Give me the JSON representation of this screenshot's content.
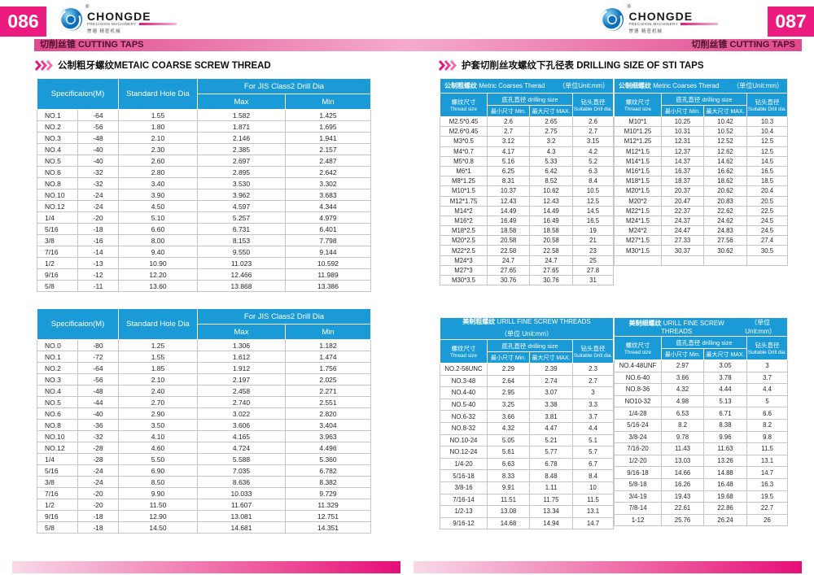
{
  "colors": {
    "accent_pink": "#e4137e",
    "page_number_bg": "#ec1b80",
    "banner_dark": "#e0498e",
    "banner_light": "#f5abcc",
    "banner_text": "#4a1228",
    "table_header_blue": "#1b9ad8",
    "body_border_gray": "#c6c6c6",
    "footer_gradient_end": "#e60e78",
    "logo_globe_blue": "#0a6fbd"
  },
  "logo": {
    "registered": "®",
    "name": "CHONGDE",
    "subtitle": "PRECISION MACHINERY",
    "chinese": "崇德 精密机械"
  },
  "left_page": {
    "page_number": "086",
    "banner": "切削丝锥 CUTTING TAPS",
    "section_title": "公制粗牙螺纹METAIC COARSE SCREW THREAD",
    "headers": {
      "spec": "Specificaion(M)",
      "std": "Standard Hole Dia",
      "jis": "For JIS Class2 Drill Dia",
      "max": "Max",
      "min": "Min"
    },
    "table1_rows": [
      [
        "NO.1",
        "-64",
        "1.55",
        "1.582",
        "1.425"
      ],
      [
        "NO.2",
        "-56",
        "1.80",
        "1.871",
        "1.695"
      ],
      [
        "NO.3",
        "-48",
        "2.10",
        "2.146",
        "1.941"
      ],
      [
        "NO.4",
        "-40",
        "2.30",
        "2.385",
        "2.157"
      ],
      [
        "NO.5",
        "-40",
        "2.60",
        "2.697",
        "2.487"
      ],
      [
        "NO.6",
        "-32",
        "2.80",
        "2.895",
        "2.642"
      ],
      [
        "NO.8",
        "-32",
        "3.40",
        "3.530",
        "3.302"
      ],
      [
        "NO.10",
        "-24",
        "3.90",
        "3.962",
        "3.683"
      ],
      [
        "NO.12",
        "-24",
        "4.50",
        "4.597",
        "4.344"
      ],
      [
        "1/4",
        "-20",
        "5.10",
        "5.257",
        "4.979"
      ],
      [
        "5/16",
        "-18",
        "6.60",
        "6.731",
        "6.401"
      ],
      [
        "3/8",
        "-16",
        "8.00",
        "8.153",
        "7.798"
      ],
      [
        "7/16",
        "-14",
        "9.40",
        "9.550",
        "9.144"
      ],
      [
        "1/2",
        "-13",
        "10.90",
        "11.023",
        "10.592"
      ],
      [
        "9/16",
        "-12",
        "12.20",
        "12.466",
        "11.989"
      ],
      [
        "5/8",
        "-11",
        "13.60",
        "13.868",
        "13.386"
      ]
    ],
    "table2_rows": [
      [
        "NO.0",
        "-80",
        "1.25",
        "1.306",
        "1.182"
      ],
      [
        "NO.1",
        "-72",
        "1.55",
        "1.612",
        "1.474"
      ],
      [
        "NO.2",
        "-64",
        "1.85",
        "1.912",
        "1.756"
      ],
      [
        "NO.3",
        "-56",
        "2.10",
        "2.197",
        "2.025"
      ],
      [
        "NO.4",
        "-48",
        "2.40",
        "2.458",
        "2.271"
      ],
      [
        "NO.5",
        "-44",
        "2.70",
        "2.740",
        "2.551"
      ],
      [
        "NO.6",
        "-40",
        "2.90",
        "3.022",
        "2.820"
      ],
      [
        "NO.8",
        "-36",
        "3.50",
        "3.606",
        "3.404"
      ],
      [
        "NO.10",
        "-32",
        "4.10",
        "4.165",
        "3.963"
      ],
      [
        "NO.12",
        "-28",
        "4.60",
        "4.724",
        "4.496"
      ],
      [
        "1/4",
        "-28",
        "5.50",
        "5.588",
        "5.360"
      ],
      [
        "5/16",
        "-24",
        "6.90",
        "7.035",
        "6.782"
      ],
      [
        "3/8",
        "-24",
        "8.50",
        "8.636",
        "8.382"
      ],
      [
        "7/16",
        "-20",
        "9.90",
        "10.033",
        "9.729"
      ],
      [
        "1/2",
        "-20",
        "11.50",
        "11.607",
        "11.329"
      ],
      [
        "9/16",
        "-18",
        "12.90",
        "13.081",
        "12.751"
      ],
      [
        "5/8",
        "-18",
        "14.50",
        "14.681",
        "14.351"
      ]
    ]
  },
  "right_page": {
    "page_number": "087",
    "banner": "切削丝锥 CUTTING TAPS",
    "section_title": "护套切削丝攻螺纹下孔径表 DRILLING SIZE OF STI TAPS",
    "common_headers": {
      "thread_zh": "螺纹尺寸",
      "thread_en": "Thread size",
      "drilling": "底孔直径 drilling size",
      "min": "最小尺寸 Min.",
      "max": "最大尺寸 MAX.",
      "drill_zh": "钻头直径",
      "drill_en": "Suitable Drill dia."
    },
    "tables": [
      {
        "title_zh": "公制粗螺纹",
        "title_en": "Metric Coarses Therad",
        "unit": "（单位Unit:mm）",
        "rows": [
          [
            "M2.5*0.45",
            "2.6",
            "2.65",
            "2.6"
          ],
          [
            "M2.6*0.45",
            "2.7",
            "2.75",
            "2.7"
          ],
          [
            "M3*0.5",
            "3.12",
            "3.2",
            "3.15"
          ],
          [
            "M4*0.7",
            "4.17",
            "4.3",
            "4.2"
          ],
          [
            "M5*0.8",
            "5.16",
            "5.33",
            "5.2"
          ],
          [
            "M6*1",
            "6.25",
            "6.42",
            "6.3"
          ],
          [
            "M8*1.25",
            "8.31",
            "8.52",
            "8.4"
          ],
          [
            "M10*1.5",
            "10.37",
            "10.62",
            "10.5"
          ],
          [
            "M12*1.75",
            "12.43",
            "12.43",
            "12.5"
          ],
          [
            "M14*2",
            "14.49",
            "14.49",
            "14.5"
          ],
          [
            "M16*2",
            "16.49",
            "16.49",
            "16.5"
          ],
          [
            "M18*2.5",
            "18.58",
            "18.58",
            "19"
          ],
          [
            "M20*2.5",
            "20.58",
            "20.58",
            "21"
          ],
          [
            "M22*2.5",
            "22.58",
            "22.58",
            "23"
          ],
          [
            "M24*3",
            "24.7",
            "24.7",
            "25"
          ],
          [
            "M27*3",
            "27.65",
            "27.65",
            "27.8"
          ],
          [
            "M30*3.5",
            "30.76",
            "30.76",
            "31"
          ]
        ]
      },
      {
        "title_zh": "公制细螺纹",
        "title_en": "Metric Coarses Therad",
        "unit": "（单位Unit:mm）",
        "rows": [
          [
            "M10*1",
            "10.25",
            "10.42",
            "10.3"
          ],
          [
            "M10*1.25",
            "10.31",
            "10.52",
            "10.4"
          ],
          [
            "M12*1.25",
            "12.31",
            "12.52",
            "12.5"
          ],
          [
            "M12*1.5",
            "12.37",
            "12.62",
            "12.5"
          ],
          [
            "M14*1.5",
            "14.37",
            "14.62",
            "14.5"
          ],
          [
            "M16*1.5",
            "16.37",
            "16.62",
            "16.5"
          ],
          [
            "M18*1.5",
            "18.37",
            "18.62",
            "18.5"
          ],
          [
            "M20*1.5",
            "20.37",
            "20.62",
            "20.4"
          ],
          [
            "M20*2",
            "20.47",
            "20.83",
            "20.5"
          ],
          [
            "M22*1.5",
            "22.37",
            "22.62",
            "22.5"
          ],
          [
            "M24*1.5",
            "24.37",
            "24.62",
            "24.5"
          ],
          [
            "M24*2",
            "24.47",
            "24.83",
            "24.5"
          ],
          [
            "M27*1.5",
            "27.33",
            "27.56",
            "27.4"
          ],
          [
            "M30*1.5",
            "30.37",
            "30.62",
            "30.5"
          ],
          [
            "",
            "",
            "",
            ""
          ]
        ]
      },
      {
        "title_zh": "美制粗螺纹",
        "title_en": "URILL FINE SCREW THREADS",
        "unit": "（单位 Unit:mm）",
        "rows": [
          [
            "NO.2-56UNC",
            "2.29",
            "2.39",
            "2.3"
          ],
          [
            "NO.3-48",
            "2.64",
            "2.74",
            "2.7"
          ],
          [
            "NO.4-40",
            "2.95",
            "3.07",
            "3"
          ],
          [
            "NO.5-40",
            "3.25",
            "3.38",
            "3.3"
          ],
          [
            "NO.6-32",
            "3.66",
            "3.81",
            "3.7"
          ],
          [
            "NO.8-32",
            "4.32",
            "4.47",
            "4.4"
          ],
          [
            "NO.10-24",
            "5.05",
            "5.21",
            "5.1"
          ],
          [
            "NO.12-24",
            "5.61",
            "5.77",
            "5.7"
          ],
          [
            "1/4-20",
            "6.63",
            "6.78",
            "6.7"
          ],
          [
            "5/16-18",
            "8.33",
            "8.48",
            "8.4"
          ],
          [
            "3/8-16",
            "9.91",
            "1.11",
            "10"
          ],
          [
            "7/16-14",
            "11.51",
            "11.75",
            "11.5"
          ],
          [
            "1/2-13",
            "13.08",
            "13.34",
            "13.1"
          ],
          [
            "9/16-12",
            "14.68",
            "14.94",
            "14.7"
          ]
        ]
      },
      {
        "title_zh": "美制细螺纹",
        "title_en": "URILL FINE SCREW THREADS",
        "unit": "（单位Unit:mm）",
        "rows": [
          [
            "NO.4-48UNF",
            "2.97",
            "3.05",
            "3"
          ],
          [
            "NO.6-40",
            "3.66",
            "3.78",
            "3.7"
          ],
          [
            "NO.8-36",
            "4.32",
            "4.44",
            "4.4"
          ],
          [
            "NO10-32",
            "4.98",
            "5.13",
            "5"
          ],
          [
            "1/4-28",
            "6.53",
            "6.71",
            "6.6"
          ],
          [
            "5/16-24",
            "8.2",
            "8.38",
            "8.2"
          ],
          [
            "3/8-24",
            "9.78",
            "9.96",
            "9.8"
          ],
          [
            "7/16-20",
            "11.43",
            "11.63",
            "11.5"
          ],
          [
            "1/2-20",
            "13.03",
            "13.26",
            "13.1"
          ],
          [
            "9/16-18",
            "14.66",
            "14.88",
            "14.7"
          ],
          [
            "5/8-18",
            "16.26",
            "16.48",
            "16.3"
          ],
          [
            "3/4-19",
            "19.43",
            "19.68",
            "19.5"
          ],
          [
            "7/8-14",
            "22.61",
            "22.86",
            "22.7"
          ],
          [
            "1-12",
            "25.76",
            "26.24",
            "26"
          ]
        ]
      }
    ]
  }
}
